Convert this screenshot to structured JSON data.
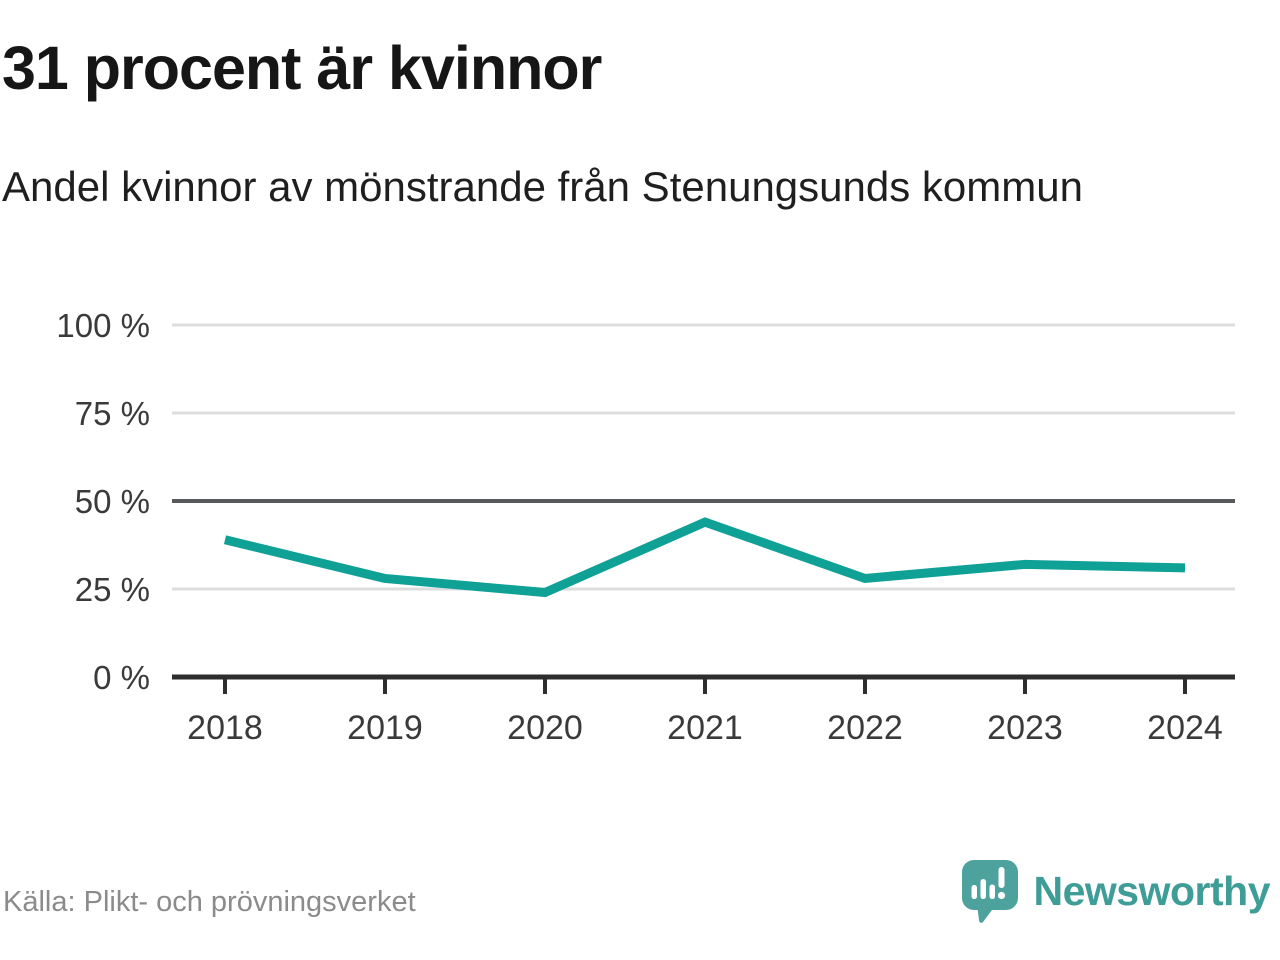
{
  "header": {
    "title": "31 procent är kvinnor",
    "subtitle": "Andel kvinnor av mönstrande från Stenungsunds kommun"
  },
  "chart_data": {
    "type": "line",
    "title": "31 procent är kvinnor",
    "subtitle": "Andel kvinnor av mönstrande från Stenungsunds kommun",
    "x": [
      "2018",
      "2019",
      "2020",
      "2021",
      "2022",
      "2023",
      "2024"
    ],
    "series": [
      {
        "name": "Andel kvinnor av mönstrande",
        "values": [
          39,
          28,
          24,
          44,
          28,
          32,
          31
        ]
      }
    ],
    "unit": "%",
    "xlabel": "",
    "ylabel": "",
    "ylim": [
      0,
      100
    ],
    "y_ticks": [
      0,
      25,
      50,
      75,
      100
    ],
    "y_tick_suffix": " %",
    "grid": "horizontal",
    "emphasized_gridline": 50,
    "legend_position": "none"
  },
  "footer": {
    "source": "Källa: Plikt- och prövningsverket",
    "logo_text": "Newsworthy"
  },
  "icons": {
    "logo_icon": "newsworthy-speech-bubble-bar-chart-icon"
  },
  "colors": {
    "line": "#0fa096",
    "grid_light": "#dcdddf",
    "grid_dark": "#58595b",
    "axis": "#2d2d2d",
    "tick_label": "#3a3a3a",
    "title_text": "#161616",
    "subtitle_text": "#1f1f1f",
    "source_text": "#8b8b8b",
    "logo_bubble": "#4ea29e",
    "logo_wordmark": "#3f9d98"
  }
}
